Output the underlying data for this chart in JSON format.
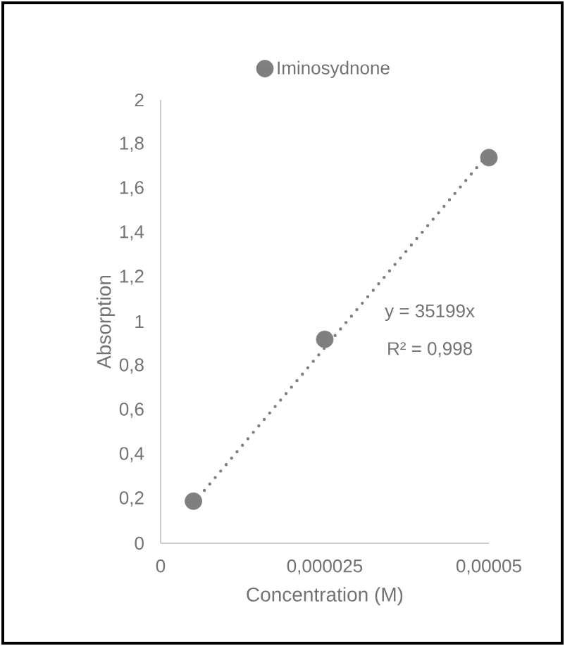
{
  "chart_data": {
    "type": "scatter",
    "xlabel": "Concentration (M)",
    "ylabel": "Absorption",
    "x": [
      5e-06,
      2.5e-05,
      5e-05
    ],
    "series": [
      {
        "name": "Iminosydnone",
        "color": "#7f7f7f",
        "values": [
          0.19,
          0.92,
          1.74
        ]
      },
      {
        "type": "line",
        "color": "#7f7f7f",
        "line_style": "dotted",
        "x": [
          5e-06,
          5e-05
        ],
        "values": [
          0.18,
          1.76
        ]
      }
    ],
    "xlim": [
      0,
      5e-05
    ],
    "ylim": [
      0,
      2
    ],
    "xticks": [
      0,
      {
        "value": 2.5e-05,
        "label": "0,000025"
      },
      {
        "value": 5e-05,
        "label": "0,00005"
      }
    ],
    "yticks": [
      0,
      {
        "value": 0.2,
        "label": "0,2"
      },
      {
        "value": 0.4,
        "label": "0,4"
      },
      {
        "value": 0.6,
        "label": "0,6"
      },
      {
        "value": 0.8,
        "label": "0,8"
      },
      1,
      {
        "value": 1.2,
        "label": "1,2"
      },
      {
        "value": 1.4,
        "label": "1,4"
      },
      {
        "value": 1.6,
        "label": "1,6"
      },
      {
        "value": 1.8,
        "label": "1,8"
      },
      2
    ],
    "grid": false,
    "legend": "top",
    "annotations": [
      "y = 35199x",
      "R² = 0,998"
    ]
  }
}
